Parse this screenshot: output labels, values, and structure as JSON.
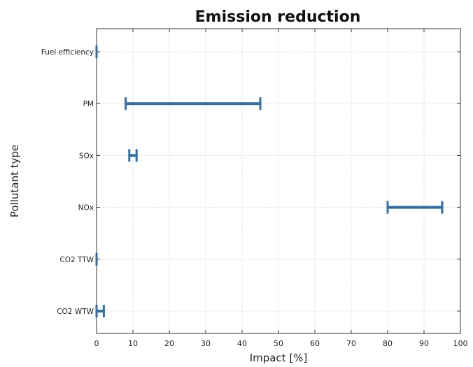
{
  "chart_data": {
    "type": "errorbar",
    "title": "Emission reduction",
    "xlabel": "Impact [%]",
    "ylabel": "Pollutant type",
    "xlim": [
      0,
      100
    ],
    "xticks": [
      0,
      10,
      20,
      30,
      40,
      50,
      60,
      70,
      80,
      90,
      100
    ],
    "grid": true,
    "bar_color": "#2f6fa6",
    "categories": [
      "Fuel efficiency",
      "PM",
      "SOx",
      "NOx",
      "CO2 TTW",
      "CO2 WTW"
    ],
    "ranges": [
      {
        "category": "Fuel efficiency",
        "min": 0,
        "max": 0
      },
      {
        "category": "PM",
        "min": 8,
        "max": 45
      },
      {
        "category": "SOx",
        "min": 9,
        "max": 11
      },
      {
        "category": "NOx",
        "min": 80,
        "max": 95
      },
      {
        "category": "CO2 TTW",
        "min": 0,
        "max": 0
      },
      {
        "category": "CO2 WTW",
        "min": 0,
        "max": 2
      }
    ]
  }
}
